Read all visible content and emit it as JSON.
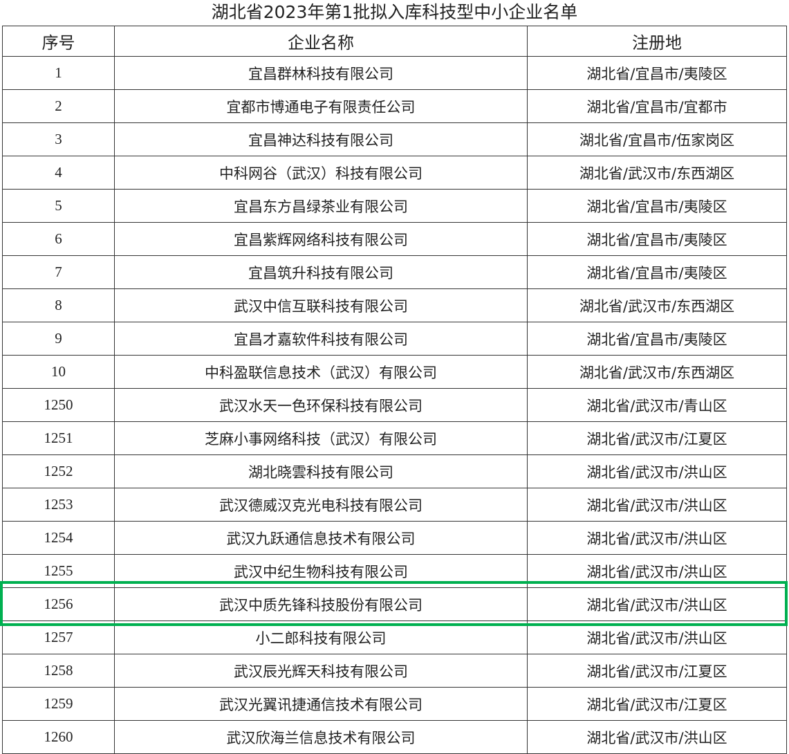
{
  "title": "湖北省2023年第1批拟入库科技型中小企业名单",
  "headers": [
    "序号",
    "企业名称",
    "注册地"
  ],
  "highlight_color": "#00b050",
  "rows": [
    [
      "1",
      "宜昌群林科技有限公司",
      "湖北省/宜昌市/夷陵区"
    ],
    [
      "2",
      "宜都市博通电子有限责任公司",
      "湖北省/宜昌市/宜都市"
    ],
    [
      "3",
      "宜昌神达科技有限公司",
      "湖北省/宜昌市/伍家岗区"
    ],
    [
      "4",
      "中科网谷（武汉）科技有限公司",
      "湖北省/武汉市/东西湖区"
    ],
    [
      "5",
      "宜昌东方昌绿茶业有限公司",
      "湖北省/宜昌市/夷陵区"
    ],
    [
      "6",
      "宜昌紫辉网络科技有限公司",
      "湖北省/宜昌市/夷陵区"
    ],
    [
      "7",
      "宜昌筑升科技有限公司",
      "湖北省/宜昌市/夷陵区"
    ],
    [
      "8",
      "武汉中信互联科技有限公司",
      "湖北省/武汉市/东西湖区"
    ],
    [
      "9",
      "宜昌才嘉软件科技有限公司",
      "湖北省/宜昌市/夷陵区"
    ],
    [
      "10",
      "中科盈联信息技术（武汉）有限公司",
      "湖北省/武汉市/东西湖区"
    ],
    [
      "1250",
      "武汉水天一色环保科技有限公司",
      "湖北省/武汉市/青山区"
    ],
    [
      "1251",
      "芝麻小事网络科技（武汉）有限公司",
      "湖北省/武汉市/江夏区"
    ],
    [
      "1252",
      "湖北晓雲科技有限公司",
      "湖北省/武汉市/洪山区"
    ],
    [
      "1253",
      "武汉德威汉克光电科技有限公司",
      "湖北省/武汉市/洪山区"
    ],
    [
      "1254",
      "武汉九跃通信息技术有限公司",
      "湖北省/武汉市/洪山区"
    ],
    [
      "1255",
      "武汉中纪生物科技有限公司",
      "湖北省/武汉市/洪山区"
    ],
    [
      "1256",
      "武汉中质先锋科技股份有限公司",
      "湖北省/武汉市/洪山区"
    ],
    [
      "1257",
      "小二郎科技有限公司",
      "湖北省/武汉市/洪山区"
    ],
    [
      "1258",
      "武汉辰光辉天科技有限公司",
      "湖北省/武汉市/江夏区"
    ],
    [
      "1259",
      "武汉光翼讯捷通信技术有限公司",
      "湖北省/武汉市/江夏区"
    ],
    [
      "1260",
      "武汉欣海兰信息技术有限公司",
      "湖北省/武汉市/洪山区"
    ]
  ]
}
